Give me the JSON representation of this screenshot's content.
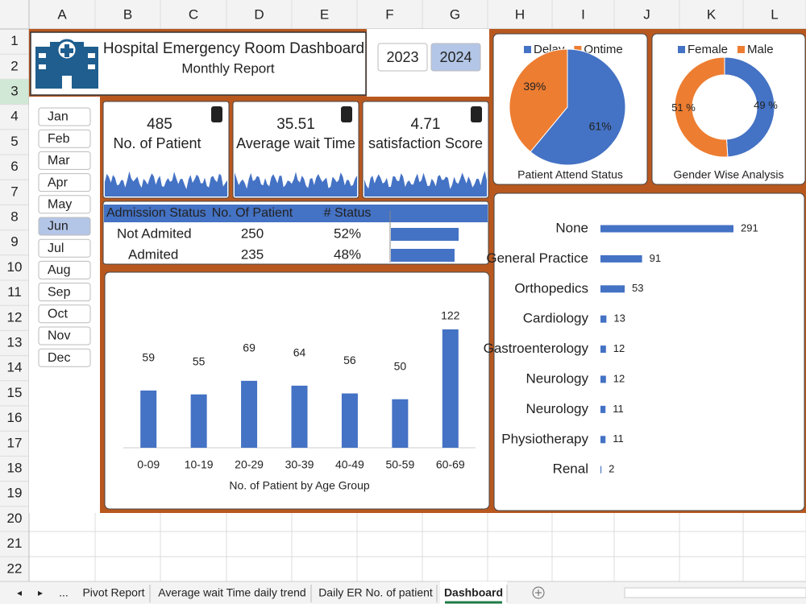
{
  "sheet": {
    "columns": [
      "A",
      "B",
      "C",
      "D",
      "E",
      "F",
      "G",
      "H",
      "I",
      "J",
      "K",
      "L"
    ],
    "rows": [
      1,
      2,
      3,
      4,
      5,
      6,
      7,
      8,
      9,
      10,
      11,
      12,
      13,
      14,
      15,
      16,
      17,
      18,
      19,
      20,
      21,
      22
    ],
    "tab_overflow": "...",
    "tabs": [
      "Pivot Report",
      "Average wait Time daily trend",
      "Daily ER No. of patient",
      "Dashboard"
    ],
    "active_tab": 3
  },
  "header": {
    "title": "Hospital Emergency Room Dashboard",
    "subtitle": "Monthly Report"
  },
  "years": {
    "options": [
      2023,
      2024
    ],
    "selected": 1
  },
  "months": {
    "options": [
      "Jan",
      "Feb",
      "Mar",
      "Apr",
      "May",
      "Jun",
      "Jul",
      "Aug",
      "Sep",
      "Oct",
      "Nov",
      "Dec"
    ],
    "selected": 5
  },
  "kpis": [
    {
      "value": 485,
      "label": "No. of Patient"
    },
    {
      "value": 35.51,
      "label": "Average wait Time"
    },
    {
      "value": 4.71,
      "label": "satisfaction Score"
    }
  ],
  "admission_table": {
    "columns": [
      "Admission Status",
      "No. Of Patient",
      "# Status"
    ],
    "rows": [
      [
        "Not Admited",
        250,
        "52%"
      ],
      [
        "Admited",
        235,
        "48%"
      ]
    ]
  },
  "charts": [
    {
      "type": "pie",
      "title": "Patient Attend Status",
      "categories": [
        "Delay",
        "Ontime"
      ],
      "values": [
        61,
        39
      ],
      "value_labels": [
        "61%",
        "39%"
      ],
      "colors": [
        "#4472c4",
        "#ed7d31"
      ]
    },
    {
      "type": "donut",
      "title": "Gender Wise Analysis",
      "categories": [
        "Female",
        "Male"
      ],
      "values": [
        49,
        51
      ],
      "value_labels": [
        "49 %",
        "51 %"
      ],
      "colors": [
        "#4472c4",
        "#ed7d31"
      ]
    },
    {
      "type": "bar",
      "title": "No. of Patient by Age Group",
      "categories": [
        "0-09",
        "10-19",
        "20-29",
        "30-39",
        "40-49",
        "50-59",
        "60-69"
      ],
      "values": [
        59,
        55,
        69,
        64,
        56,
        50,
        122
      ],
      "color": "#4472c4"
    },
    {
      "type": "barh",
      "categories": [
        "None",
        "General Practice",
        "Orthopedics",
        "Cardiology",
        "Gastroenterology",
        "Neurology",
        "Neurology",
        "Physiotherapy",
        "Renal"
      ],
      "values": [
        291,
        91,
        53,
        13,
        12,
        12,
        11,
        11,
        2
      ],
      "color": "#4472c4"
    }
  ]
}
